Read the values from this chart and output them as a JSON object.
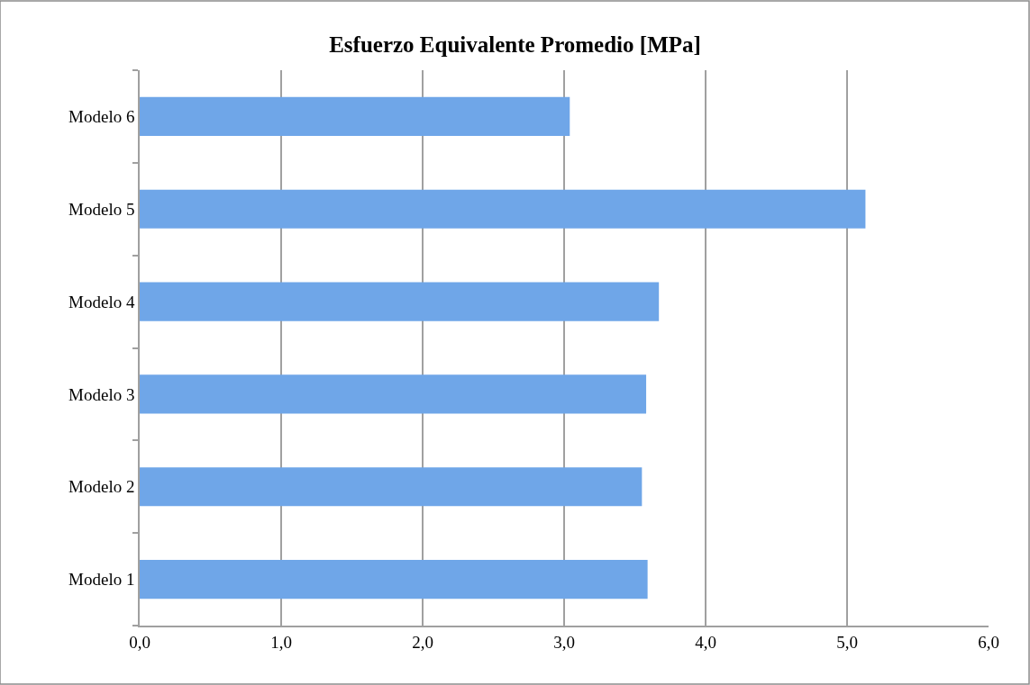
{
  "chart_data": {
    "type": "bar",
    "orientation": "horizontal",
    "title": "Esfuerzo Equivalente Promedio [MPa]",
    "categories": [
      "Modelo 6",
      "Modelo 5",
      "Modelo 4",
      "Modelo 3",
      "Modelo 2",
      "Modelo 1"
    ],
    "values": [
      3.04,
      5.13,
      3.67,
      3.58,
      3.55,
      3.59
    ],
    "color": "#6fa6e8",
    "xlim": [
      0,
      6
    ],
    "xticks": [
      {
        "value": 0,
        "label": "0,0"
      },
      {
        "value": 1,
        "label": "1,0"
      },
      {
        "value": 2,
        "label": "2,0"
      },
      {
        "value": 3,
        "label": "3,0"
      },
      {
        "value": 4,
        "label": "4,0"
      },
      {
        "value": 5,
        "label": "5,0"
      },
      {
        "value": 6,
        "label": "6,0"
      }
    ],
    "grid": "x"
  }
}
